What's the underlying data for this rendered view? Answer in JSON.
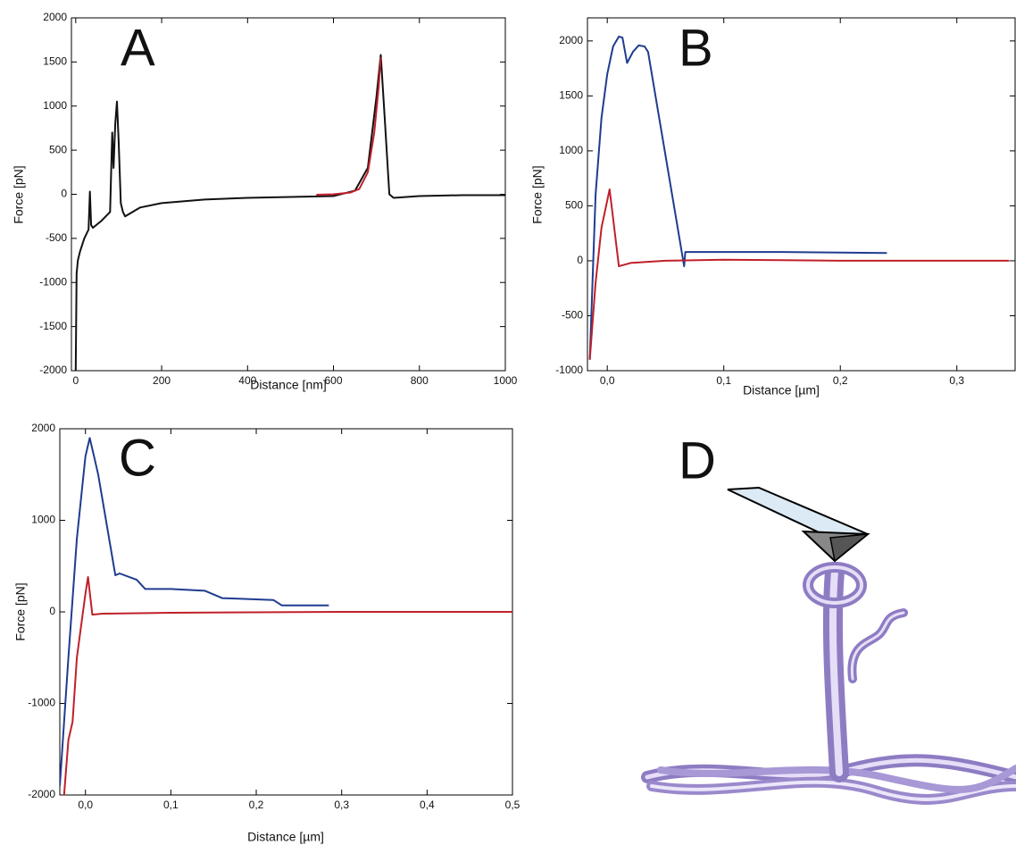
{
  "chart_data": [
    {
      "type": "line",
      "title": "A",
      "x_label": "Distance [nm]",
      "y_label": "Force [pN]",
      "xlim": [
        -10,
        1000
      ],
      "xticks": [
        0,
        200,
        400,
        600,
        800,
        1000
      ],
      "ylim": [
        -2000,
        2000
      ],
      "yticks": [
        -2000,
        -1500,
        -1000,
        -500,
        0,
        500,
        1000,
        1500,
        2000
      ],
      "series": [
        {
          "color": "#111111",
          "x": [
            0,
            2,
            5,
            10,
            20,
            30,
            33,
            36,
            40,
            60,
            80,
            85,
            88,
            92,
            96,
            100,
            105,
            110,
            115,
            150,
            200,
            300,
            400,
            500,
            600,
            650,
            680,
            700,
            710,
            720,
            730,
            740,
            800,
            900,
            1000
          ],
          "values": [
            -2000,
            -900,
            -750,
            -650,
            -500,
            -400,
            30,
            -350,
            -380,
            -300,
            -200,
            700,
            300,
            800,
            1050,
            600,
            -100,
            -200,
            -250,
            -150,
            -100,
            -60,
            -40,
            -30,
            -20,
            40,
            300,
            1100,
            1580,
            800,
            0,
            -40,
            -20,
            -10,
            -10
          ]
        },
        {
          "color": "#c0202a",
          "x": [
            560,
            600,
            640,
            660,
            680,
            695,
            705,
            710
          ],
          "values": [
            -5,
            0,
            20,
            60,
            250,
            700,
            1200,
            1550
          ]
        }
      ]
    },
    {
      "type": "line",
      "title": "B",
      "x_label": "Distance [µm]",
      "y_label": "Force [pN]",
      "xlim": [
        -0.017,
        0.35
      ],
      "xticks": [
        {
          "value": 0,
          "label": "0,0"
        },
        {
          "value": 0.1,
          "label": "0,1"
        },
        {
          "value": 0.2,
          "label": "0,2"
        },
        {
          "value": 0.3,
          "label": "0,3"
        }
      ],
      "ylim": [
        -1000,
        2210
      ],
      "yticks": [
        -1000,
        -500,
        0,
        500,
        1000,
        1500,
        2000
      ],
      "series": [
        {
          "color": "#1f3c8f",
          "x": [
            -0.015,
            -0.01,
            -0.005,
            0,
            0.005,
            0.01,
            0.013,
            0.017,
            0.022,
            0.027,
            0.032,
            0.035,
            0.066,
            0.067,
            0.1,
            0.15,
            0.2,
            0.24
          ],
          "values": [
            -900,
            600,
            1300,
            1700,
            1950,
            2040,
            2030,
            1800,
            1900,
            1960,
            1950,
            1900,
            -50,
            80,
            80,
            80,
            75,
            70
          ]
        },
        {
          "color": "#c0202a",
          "x": [
            -0.015,
            -0.01,
            -0.005,
            0,
            0.002,
            0.01,
            0.02,
            0.05,
            0.1,
            0.2,
            0.3,
            0.345
          ],
          "values": [
            -900,
            -200,
            300,
            550,
            650,
            -50,
            -20,
            0,
            10,
            0,
            0,
            0
          ]
        }
      ]
    },
    {
      "type": "line",
      "title": "C",
      "x_label": "Distance [µm]",
      "y_label": "Force [pN]",
      "xlim": [
        -0.03,
        0.5
      ],
      "xticks": [
        {
          "value": 0,
          "label": "0,0"
        },
        {
          "value": 0.1,
          "label": "0,1"
        },
        {
          "value": 0.2,
          "label": "0,2"
        },
        {
          "value": 0.3,
          "label": "0,3"
        },
        {
          "value": 0.4,
          "label": "0,4"
        },
        {
          "value": 0.5,
          "label": "0,5"
        }
      ],
      "ylim": [
        -2000,
        2000
      ],
      "yticks": [
        -2000,
        -1000,
        0,
        1000,
        2000
      ],
      "series": [
        {
          "color": "#1f3c8f",
          "x": [
            -0.03,
            -0.02,
            -0.01,
            0,
            0.005,
            0.01,
            0.015,
            0.035,
            0.04,
            0.06,
            0.07,
            0.1,
            0.14,
            0.16,
            0.22,
            0.23,
            0.285
          ],
          "values": [
            -1900,
            -500,
            800,
            1700,
            1900,
            1700,
            1500,
            400,
            420,
            350,
            250,
            250,
            230,
            150,
            130,
            70,
            70
          ]
        },
        {
          "color": "#c0202a",
          "x": [
            -0.025,
            -0.02,
            -0.015,
            -0.01,
            0,
            0.003,
            0.008,
            0.02,
            0.1,
            0.3,
            0.5
          ],
          "values": [
            -2000,
            -1400,
            -1200,
            -500,
            200,
            380,
            -30,
            -20,
            -10,
            0,
            0
          ]
        }
      ]
    }
  ],
  "illustration": {
    "label": "D"
  }
}
